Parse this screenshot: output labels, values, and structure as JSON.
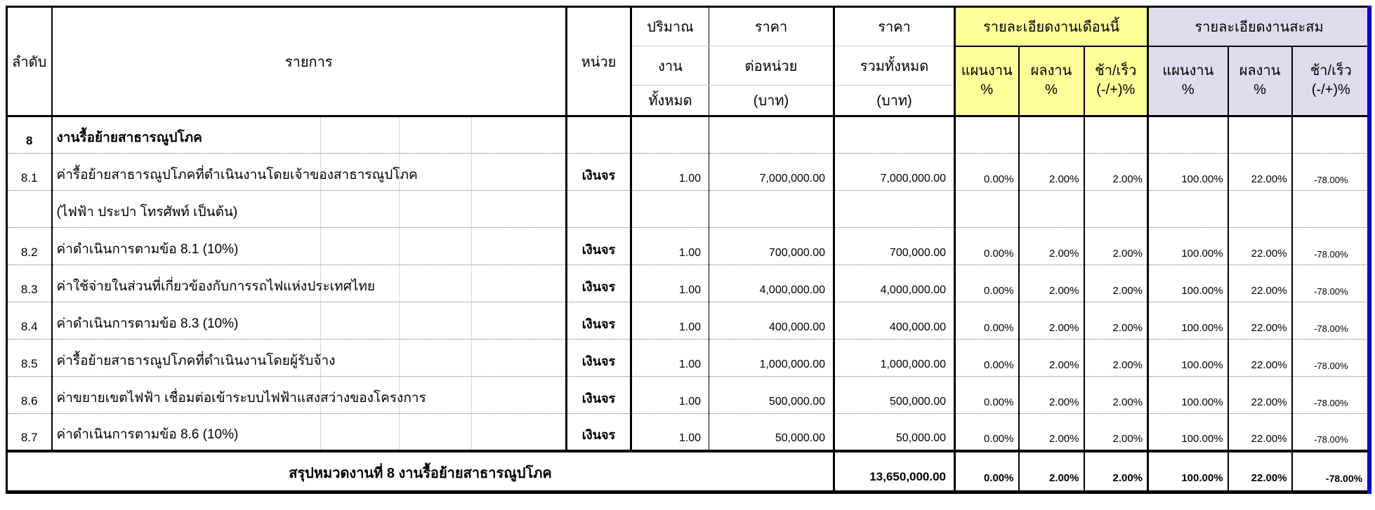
{
  "table": {
    "header": {
      "no": "ลำดับ",
      "item": "รายการ",
      "unit": "หน่วย",
      "quantity": [
        "ปริมาณ",
        "งาน",
        "ทั้งหมด"
      ],
      "unit_price": [
        "ราคา",
        "ต่อหน่วย",
        "(บาท)"
      ],
      "total_price": [
        "ราคา",
        "รวมทั้งหมด",
        "(บาท)"
      ],
      "month_group": {
        "title": "รายละเอียดงานเดือนนี้",
        "plan": "แผนงาน",
        "plan_unit": "%",
        "result": "ผลงาน",
        "result_unit": "%",
        "diff": "ช้า/เร็ว",
        "diff_unit": "(-/+)%"
      },
      "cum_group": {
        "title": "รายละเอียดงานสะสม",
        "plan": "แผนงาน",
        "plan_unit": "%",
        "result": "ผลงาน",
        "result_unit": "%",
        "diff": "ช้า/เร็ว",
        "diff_unit": "(-/+)%"
      }
    },
    "rows": [
      {
        "no": "8",
        "desc": "งานรื้อย้ายสาธารณูปโภค",
        "bold": true,
        "unit": "",
        "qty": "",
        "unit_price": "",
        "total_price": "",
        "m_plan": "",
        "m_result": "",
        "m_diff": "",
        "c_plan": "",
        "c_result": "",
        "c_diff": ""
      },
      {
        "no": "8.1",
        "desc": "ค่ารื้อย้ายสาธารณูปโภคที่ดำเนินงานโดยเจ้าของสาธารณูปโภค",
        "unit": "เงินจร",
        "qty": "1.00",
        "unit_price": "7,000,000.00",
        "total_price": "7,000,000.00",
        "m_plan": "0.00%",
        "m_result": "2.00%",
        "m_diff": "2.00%",
        "c_plan": "100.00%",
        "c_result": "22.00%",
        "c_diff": "-78.00%"
      },
      {
        "no": "",
        "desc": "(ไฟฟ้า ประปา โทรศัพท์ เป็นต้น)",
        "unit": "",
        "qty": "",
        "unit_price": "",
        "total_price": "",
        "m_plan": "",
        "m_result": "",
        "m_diff": "",
        "c_plan": "",
        "c_result": "",
        "c_diff": ""
      },
      {
        "no": "8.2",
        "desc": "ค่าดำเนินการตามข้อ 8.1 (10%)",
        "unit": "เงินจร",
        "qty": "1.00",
        "unit_price": "700,000.00",
        "total_price": "700,000.00",
        "m_plan": "0.00%",
        "m_result": "2.00%",
        "m_diff": "2.00%",
        "c_plan": "100.00%",
        "c_result": "22.00%",
        "c_diff": "-78.00%"
      },
      {
        "no": "8.3",
        "desc": "ค่าใช้จ่ายในส่วนที่เกี่ยวข้องกับการรถไฟแห่งประเทศไทย",
        "unit": "เงินจร",
        "qty": "1.00",
        "unit_price": "4,000,000.00",
        "total_price": "4,000,000.00",
        "m_plan": "0.00%",
        "m_result": "2.00%",
        "m_diff": "2.00%",
        "c_plan": "100.00%",
        "c_result": "22.00%",
        "c_diff": "-78.00%"
      },
      {
        "no": "8.4",
        "desc": "ค่าดำเนินการตามข้อ 8.3 (10%)",
        "unit": "เงินจร",
        "qty": "1.00",
        "unit_price": "400,000.00",
        "total_price": "400,000.00",
        "m_plan": "0.00%",
        "m_result": "2.00%",
        "m_diff": "2.00%",
        "c_plan": "100.00%",
        "c_result": "22.00%",
        "c_diff": "-78.00%"
      },
      {
        "no": "8.5",
        "desc": "ค่ารื้อย้ายสาธารณูปโภคที่ดำเนินงานโดยผู้รับจ้าง",
        "unit": "เงินจร",
        "qty": "1.00",
        "unit_price": "1,000,000.00",
        "total_price": "1,000,000.00",
        "m_plan": "0.00%",
        "m_result": "2.00%",
        "m_diff": "2.00%",
        "c_plan": "100.00%",
        "c_result": "22.00%",
        "c_diff": "-78.00%"
      },
      {
        "no": "8.6",
        "desc": "ค่าขยายเขตไฟฟ้า เชื่อมต่อเข้าระบบไฟฟ้าแสงสว่างของโครงการ",
        "unit": "เงินจร",
        "qty": "1.00",
        "unit_price": "500,000.00",
        "total_price": "500,000.00",
        "m_plan": "0.00%",
        "m_result": "2.00%",
        "m_diff": "2.00%",
        "c_plan": "100.00%",
        "c_result": "22.00%",
        "c_diff": "-78.00%"
      },
      {
        "no": "8.7",
        "desc": "ค่าดำเนินการตามข้อ 8.6 (10%)",
        "unit": "เงินจร",
        "qty": "1.00",
        "unit_price": "50,000.00",
        "total_price": "50,000.00",
        "m_plan": "0.00%",
        "m_result": "2.00%",
        "m_diff": "2.00%",
        "c_plan": "100.00%",
        "c_result": "22.00%",
        "c_diff": "-78.00%"
      }
    ],
    "summary": {
      "label": "สรุปหมวดงานที่ 8 งานรื้อย้ายสาธารณูปโภค",
      "total_price": "13,650,000.00",
      "m_plan": "0.00%",
      "m_result": "2.00%",
      "m_diff": "2.00%",
      "c_plan": "100.00%",
      "c_result": "22.00%",
      "c_diff": "-78.00%"
    }
  },
  "colors": {
    "month_header_bg": "#FFFF99",
    "cum_header_bg": "#DEDCEE",
    "page_break_line": "#0000DD",
    "border": "#000000"
  }
}
